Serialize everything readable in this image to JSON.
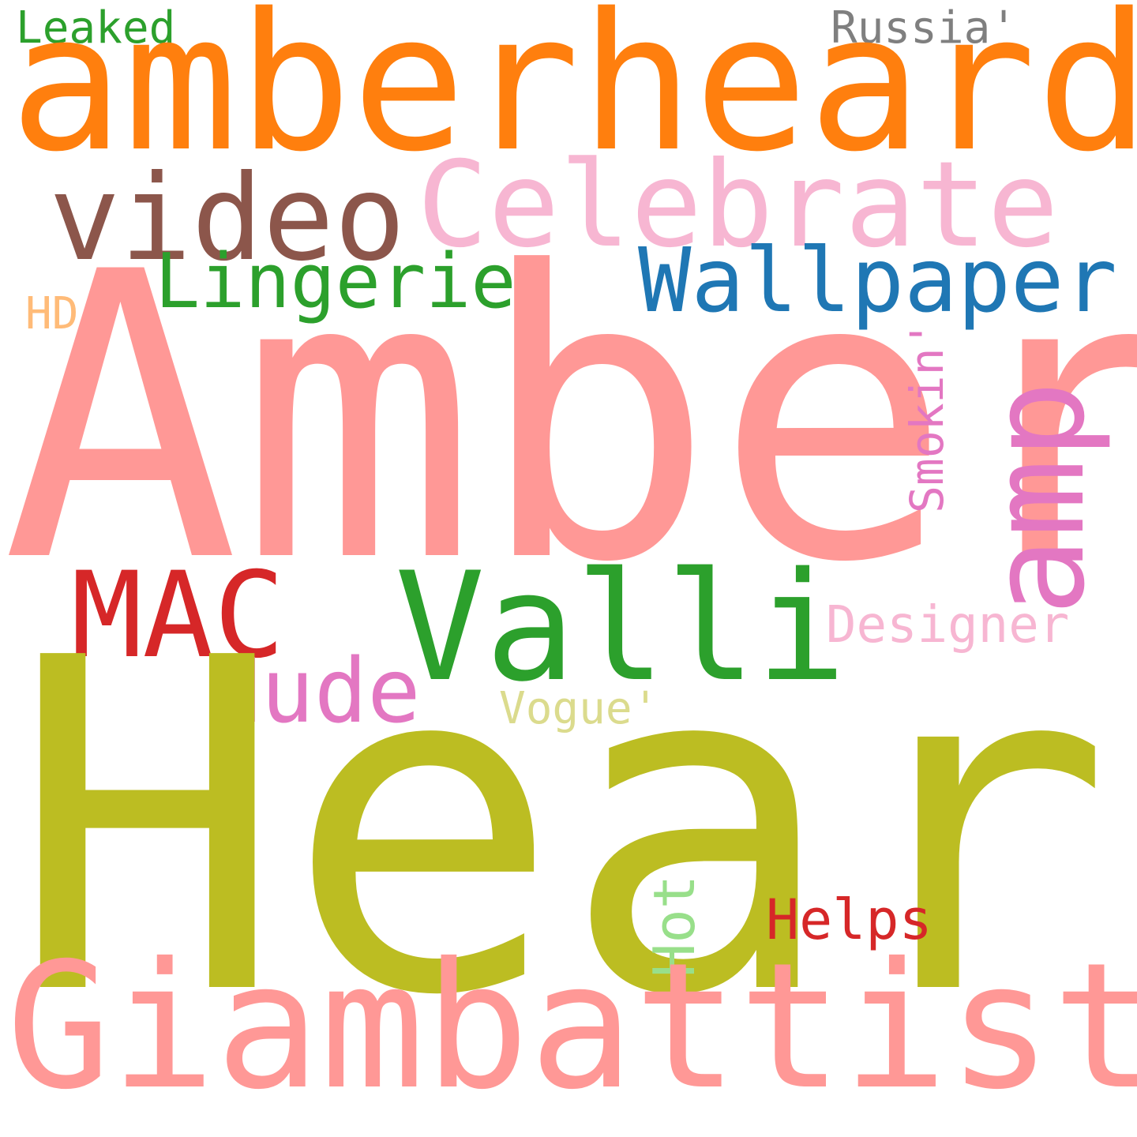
{
  "words": [
    {
      "text": "Leaked",
      "color": "#2ca02c"
    },
    {
      "text": "Russia'",
      "color": "#7f7f7f"
    },
    {
      "text": "amberheard",
      "color": "#ff7f0e"
    },
    {
      "text": "video",
      "color": "#8c564b"
    },
    {
      "text": "Celebrate",
      "color": "#f7b6d2"
    },
    {
      "text": "Wallpaper",
      "color": "#1f77b4"
    },
    {
      "text": "Lingerie",
      "color": "#2ca02c"
    },
    {
      "text": "HD",
      "color": "#ffbb78"
    },
    {
      "text": "Amber",
      "color": "#ff9896"
    },
    {
      "text": "Smokin'",
      "color": "#e377c2"
    },
    {
      "text": "amp",
      "color": "#e377c2"
    },
    {
      "text": "MAC",
      "color": "#d62728"
    },
    {
      "text": "Valli",
      "color": "#2ca02c"
    },
    {
      "text": "Designer",
      "color": "#f7b6d2"
    },
    {
      "text": "Nude",
      "color": "#e377c2"
    },
    {
      "text": "Vogue'",
      "color": "#dbdb8d"
    },
    {
      "text": "Heard",
      "color": "#bcbd22"
    },
    {
      "text": "Hot",
      "color": "#98df8a"
    },
    {
      "text": "Helps",
      "color": "#d62728"
    },
    {
      "text": "Giambattista",
      "color": "#ff9896"
    }
  ]
}
